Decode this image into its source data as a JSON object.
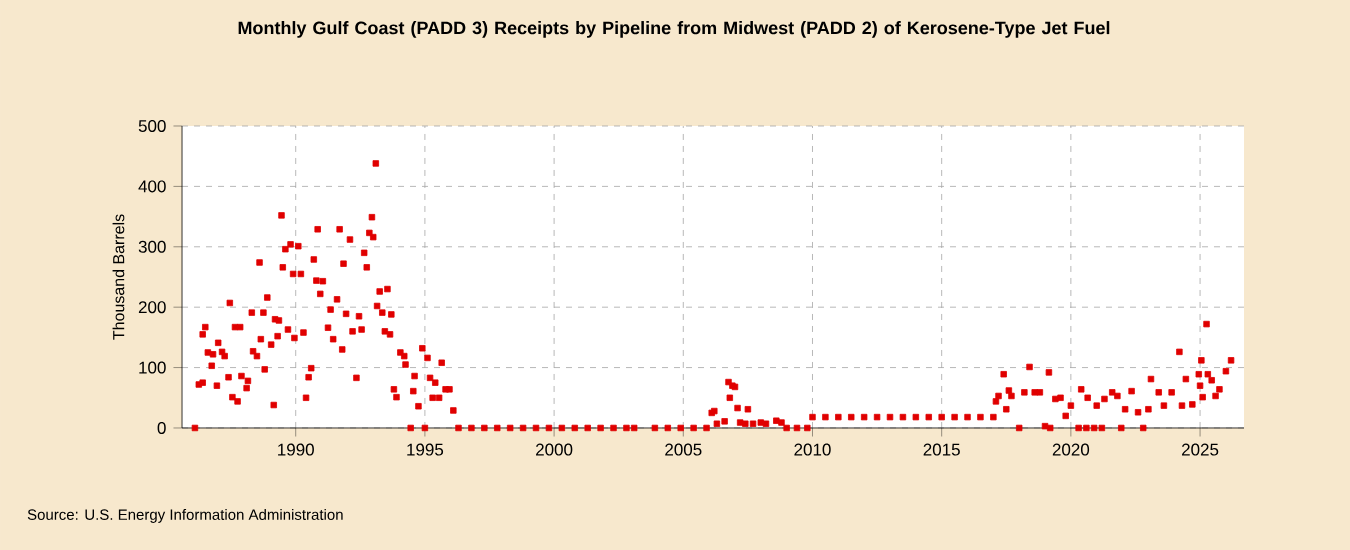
{
  "chart_data": {
    "type": "scatter",
    "title": "Monthly Gulf Coast (PADD 3) Receipts by Pipeline from Midwest (PADD 2) of Kerosene-Type Jet Fuel",
    "ylabel": "Thousand Barrels",
    "annotations": [
      "Source: U.S. Energy Information Administration"
    ],
    "series": [
      {
        "color": "#e00000",
        "x": [
          1986.1,
          1986.25,
          1986.4,
          1986.4,
          1986.5,
          1986.6,
          1986.75,
          1986.8,
          1986.95,
          1987.0,
          1987.15,
          1987.25,
          1987.4,
          1987.45,
          1987.55,
          1987.65,
          1987.75,
          1987.85,
          1987.9,
          1988.1,
          1988.15,
          1988.3,
          1988.35,
          1988.5,
          1988.6,
          1988.65,
          1988.75,
          1988.8,
          1988.9,
          1989.05,
          1989.15,
          1989.2,
          1989.3,
          1989.35,
          1989.45,
          1989.5,
          1989.6,
          1989.7,
          1989.8,
          1989.9,
          1989.95,
          1990.1,
          1990.2,
          1990.3,
          1990.4,
          1990.5,
          1990.6,
          1990.7,
          1990.8,
          1990.85,
          1990.95,
          1991.05,
          1991.25,
          1991.35,
          1991.45,
          1991.6,
          1991.7,
          1991.8,
          1991.85,
          1991.95,
          1992.1,
          1992.2,
          1992.35,
          1992.45,
          1992.55,
          1992.65,
          1992.75,
          1992.85,
          1992.95,
          1993.0,
          1993.1,
          1993.15,
          1993.25,
          1993.35,
          1993.45,
          1993.55,
          1993.65,
          1993.7,
          1993.8,
          1993.9,
          1994.05,
          1994.2,
          1994.25,
          1994.45,
          1994.55,
          1994.6,
          1994.75,
          1994.9,
          1995.0,
          1995.1,
          1995.2,
          1995.3,
          1995.4,
          1995.55,
          1995.65,
          1995.8,
          1995.95,
          1996.1,
          1996.3,
          1996.8,
          1997.3,
          1997.8,
          1998.3,
          1998.8,
          1999.3,
          1999.8,
          2000.3,
          2000.8,
          2001.3,
          2001.8,
          2002.3,
          2002.8,
          2003.1,
          2003.9,
          2004.4,
          2004.9,
          2005.4,
          2005.9,
          2006.1,
          2006.2,
          2006.3,
          2006.6,
          2006.75,
          2006.8,
          2006.9,
          2007.0,
          2007.1,
          2007.2,
          2007.4,
          2007.5,
          2007.7,
          2008.0,
          2008.2,
          2008.6,
          2008.8,
          2009.0,
          2009.4,
          2009.8,
          2010.0,
          2010.5,
          2011.0,
          2011.5,
          2012.0,
          2012.5,
          2013.0,
          2013.5,
          2014.0,
          2014.5,
          2015.0,
          2015.5,
          2016.0,
          2016.5,
          2017.0,
          2017.1,
          2017.2,
          2017.4,
          2017.5,
          2017.6,
          2017.7,
          2018.0,
          2018.2,
          2018.4,
          2018.6,
          2018.8,
          2019.0,
          2019.15,
          2019.2,
          2019.4,
          2019.6,
          2019.8,
          2020.0,
          2020.3,
          2020.4,
          2020.6,
          2020.65,
          2020.9,
          2021.0,
          2021.2,
          2021.3,
          2021.6,
          2021.8,
          2021.95,
          2022.1,
          2022.35,
          2022.6,
          2022.8,
          2023.0,
          2023.1,
          2023.4,
          2023.6,
          2023.9,
          2024.2,
          2024.3,
          2024.45,
          2024.7,
          2024.95,
          2025.0,
          2025.05,
          2025.1,
          2025.25,
          2025.3,
          2025.45,
          2025.6,
          2025.75,
          2026.0,
          2026.2
        ],
        "values": [
          0,
          72,
          75,
          155,
          167,
          125,
          103,
          122,
          70,
          141,
          126,
          119,
          84,
          207,
          51,
          167,
          44,
          167,
          86,
          66,
          78,
          191,
          127,
          119,
          274,
          147,
          191,
          97,
          216,
          138,
          38,
          180,
          152,
          178,
          352,
          266,
          296,
          163,
          304,
          255,
          149,
          301,
          255,
          158,
          50,
          84,
          99,
          279,
          244,
          329,
          222,
          243,
          166,
          196,
          147,
          213,
          329,
          130,
          272,
          189,
          312,
          160,
          83,
          185,
          163,
          290,
          266,
          323,
          349,
          316,
          438,
          202,
          226,
          191,
          160,
          230,
          155,
          188,
          64,
          51,
          125,
          119,
          105,
          0,
          61,
          86,
          36,
          132,
          0,
          116,
          83,
          50,
          75,
          50,
          108,
          64,
          64,
          29,
          0,
          0,
          0,
          0,
          0,
          0,
          0,
          0,
          0,
          0,
          0,
          0,
          0,
          0,
          0,
          0,
          0,
          0,
          0,
          0,
          25,
          28,
          7,
          11,
          76,
          50,
          70,
          68,
          33,
          9,
          7,
          31,
          7,
          9,
          7,
          12,
          9,
          0,
          0,
          0,
          18,
          18,
          18,
          18,
          18,
          18,
          18,
          18,
          18,
          18,
          18,
          18,
          18,
          18,
          18,
          44,
          53,
          89,
          31,
          62,
          53,
          0,
          59,
          101,
          59,
          59,
          3,
          92,
          0,
          48,
          50,
          20,
          37,
          0,
          64,
          0,
          50,
          0,
          37,
          0,
          48,
          59,
          53,
          0,
          31,
          61,
          26,
          0,
          31,
          81,
          59,
          37,
          59,
          126,
          37,
          81,
          39,
          89,
          70,
          112,
          51,
          172,
          89,
          79,
          53,
          64,
          94,
          112
        ]
      }
    ],
    "xlim": [
      1985.6,
      2026.7
    ],
    "xticks": [
      1990,
      1995,
      2000,
      2005,
      2010,
      2015,
      2020,
      2025
    ],
    "ylim": [
      0,
      500
    ],
    "yticks": [
      0,
      100,
      200,
      300,
      400,
      500
    ],
    "grid": true,
    "marker": "square"
  }
}
